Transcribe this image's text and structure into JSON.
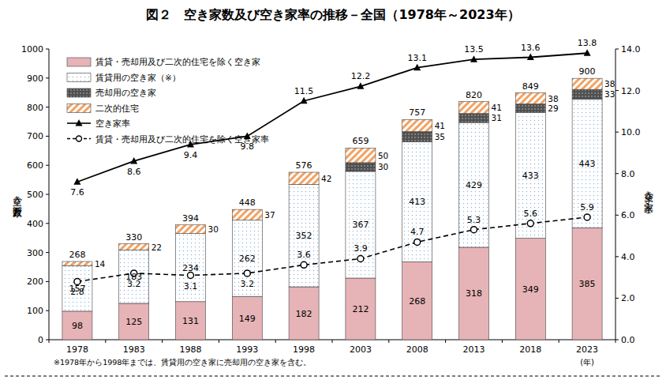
{
  "chart_data": {
    "type": "bar",
    "title": "図２　空き家数及び空き家率の推移－全国（1978年～2023年）",
    "stacked": true,
    "data_labels": true,
    "grid": false,
    "legend": "top-left",
    "categories": [
      "1978",
      "1983",
      "1988",
      "1993",
      "1998",
      "2003",
      "2008",
      "2013",
      "2018",
      "2023"
    ],
    "x_label": "(年)",
    "y_label": "空き家数（万戸）",
    "y2_label": "空き家率（%）",
    "ylim": [
      0,
      1000
    ],
    "yticks": [
      0,
      100,
      200,
      300,
      400,
      500,
      600,
      700,
      800,
      900,
      1000
    ],
    "y2lim": [
      0,
      14
    ],
    "y2ticks": [
      {
        "value": 0,
        "label": "0.0"
      },
      {
        "value": 2,
        "label": "2.0"
      },
      {
        "value": 4,
        "label": "4.0"
      },
      {
        "value": 6,
        "label": "6.0"
      },
      {
        "value": 8,
        "label": "8.0"
      },
      {
        "value": 10,
        "label": "10.0"
      },
      {
        "value": 12,
        "label": "12.0"
      },
      {
        "value": 14,
        "label": "14.0"
      }
    ],
    "totals": [
      268,
      330,
      394,
      448,
      576,
      659,
      757,
      820,
      849,
      900
    ],
    "footnote": "※1978年から1998年までは、賃貸用の空き家に売却用の空き家を含む。",
    "series": [
      {
        "name": "賃貸・売却用及び二次的住宅を除く空き家",
        "type": "bar",
        "color": "#e6b3b6",
        "values": [
          98,
          125,
          131,
          149,
          182,
          212,
          268,
          318,
          349,
          385
        ]
      },
      {
        "name": "賃貸用の空き家（※）",
        "type": "bar",
        "color": "#8fb4d9",
        "values": [
          157,
          183,
          234,
          262,
          352,
          367,
          413,
          429,
          433,
          443
        ]
      },
      {
        "name": "売却用の空き家",
        "type": "bar",
        "color": "#505050",
        "values": [
          null,
          null,
          null,
          null,
          null,
          30,
          35,
          31,
          29,
          33
        ]
      },
      {
        "name": "二次的住宅",
        "type": "bar",
        "color": "#f2a262",
        "values": [
          14,
          22,
          30,
          37,
          42,
          50,
          41,
          41,
          38,
          38
        ]
      },
      {
        "name": "空き家率",
        "type": "line",
        "axis": "y2",
        "color": "#000000",
        "marker": "triangle",
        "line_style": "solid",
        "values": [
          7.6,
          8.6,
          9.4,
          9.8,
          11.5,
          12.2,
          13.1,
          13.5,
          13.6,
          13.8
        ]
      },
      {
        "name": "賃貸・売却用及び二次的住宅を除く空き家率",
        "type": "line",
        "axis": "y2",
        "color": "#000000",
        "marker": "circle",
        "line_style": "dashed",
        "values": [
          2.8,
          3.2,
          3.1,
          3.2,
          3.6,
          3.9,
          4.7,
          5.3,
          5.6,
          5.9
        ]
      }
    ]
  }
}
